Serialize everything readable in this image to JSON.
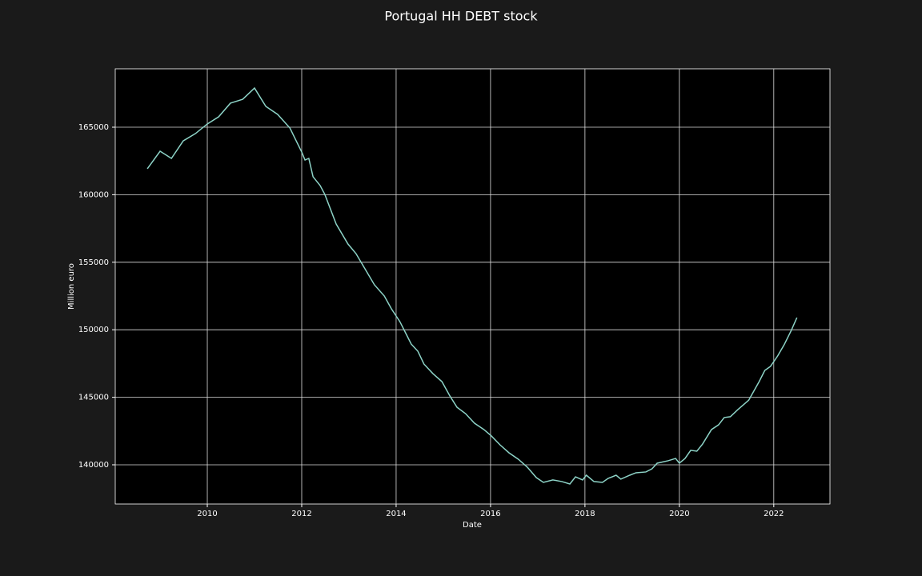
{
  "chart_data": {
    "type": "line",
    "title": "Portugal HH DEBT stock",
    "x_label": "Date",
    "y_label": "Million euro",
    "x": [
      2008.73,
      2009.0,
      2009.24,
      2009.49,
      2009.75,
      2010.0,
      2010.24,
      2010.49,
      2010.75,
      2011.0,
      2011.24,
      2011.49,
      2011.75,
      2012.0,
      2012.07,
      2012.15,
      2012.24,
      2012.39,
      2012.49,
      2012.73,
      2012.98,
      2013.15,
      2013.29,
      2013.54,
      2013.75,
      2013.9,
      2014.08,
      2014.32,
      2014.46,
      2014.59,
      2014.78,
      2014.97,
      2015.14,
      2015.29,
      2015.47,
      2015.66,
      2015.86,
      2016.02,
      2016.2,
      2016.39,
      2016.59,
      2016.78,
      2016.97,
      2017.12,
      2017.32,
      2017.51,
      2017.68,
      2017.8,
      2017.95,
      2018.03,
      2018.19,
      2018.37,
      2018.49,
      2018.66,
      2018.76,
      2018.95,
      2019.08,
      2019.29,
      2019.42,
      2019.53,
      2019.76,
      2019.92,
      2020.0,
      2020.12,
      2020.24,
      2020.37,
      2020.49,
      2020.68,
      2020.83,
      2020.95,
      2021.08,
      2021.24,
      2021.47,
      2021.69,
      2021.81,
      2021.93,
      2022.08,
      2022.22,
      2022.37,
      2022.49
    ],
    "series": [
      {
        "name": "HH debt",
        "color": "#8dd3c7",
        "values": [
          161920,
          163220,
          162690,
          163990,
          164530,
          165240,
          165770,
          166780,
          167070,
          167900,
          166540,
          165950,
          164940,
          163160,
          162570,
          162690,
          161330,
          160680,
          160020,
          157830,
          156350,
          155640,
          154810,
          153330,
          152500,
          151550,
          150600,
          148940,
          148410,
          147460,
          146750,
          146160,
          145090,
          144260,
          143790,
          143080,
          142610,
          142130,
          141480,
          140890,
          140410,
          139820,
          139050,
          138700,
          138880,
          138760,
          138580,
          139110,
          138880,
          139230,
          138760,
          138700,
          138990,
          139230,
          138940,
          139230,
          139410,
          139470,
          139700,
          140120,
          140300,
          140470,
          140120,
          140470,
          141070,
          141010,
          141530,
          142610,
          142960,
          143500,
          143560,
          144090,
          144790,
          146160,
          146990,
          147290,
          148050,
          148890,
          149950,
          150900
        ]
      }
    ],
    "xlim": [
      2008.05,
      2023.19
    ],
    "xticks": [
      2010,
      2012,
      2014,
      2016,
      2018,
      2020,
      2022
    ],
    "ylim": [
      137097,
      169325
    ],
    "yticks": [
      140000,
      145000,
      150000,
      155000,
      160000,
      165000
    ],
    "grid": true
  }
}
